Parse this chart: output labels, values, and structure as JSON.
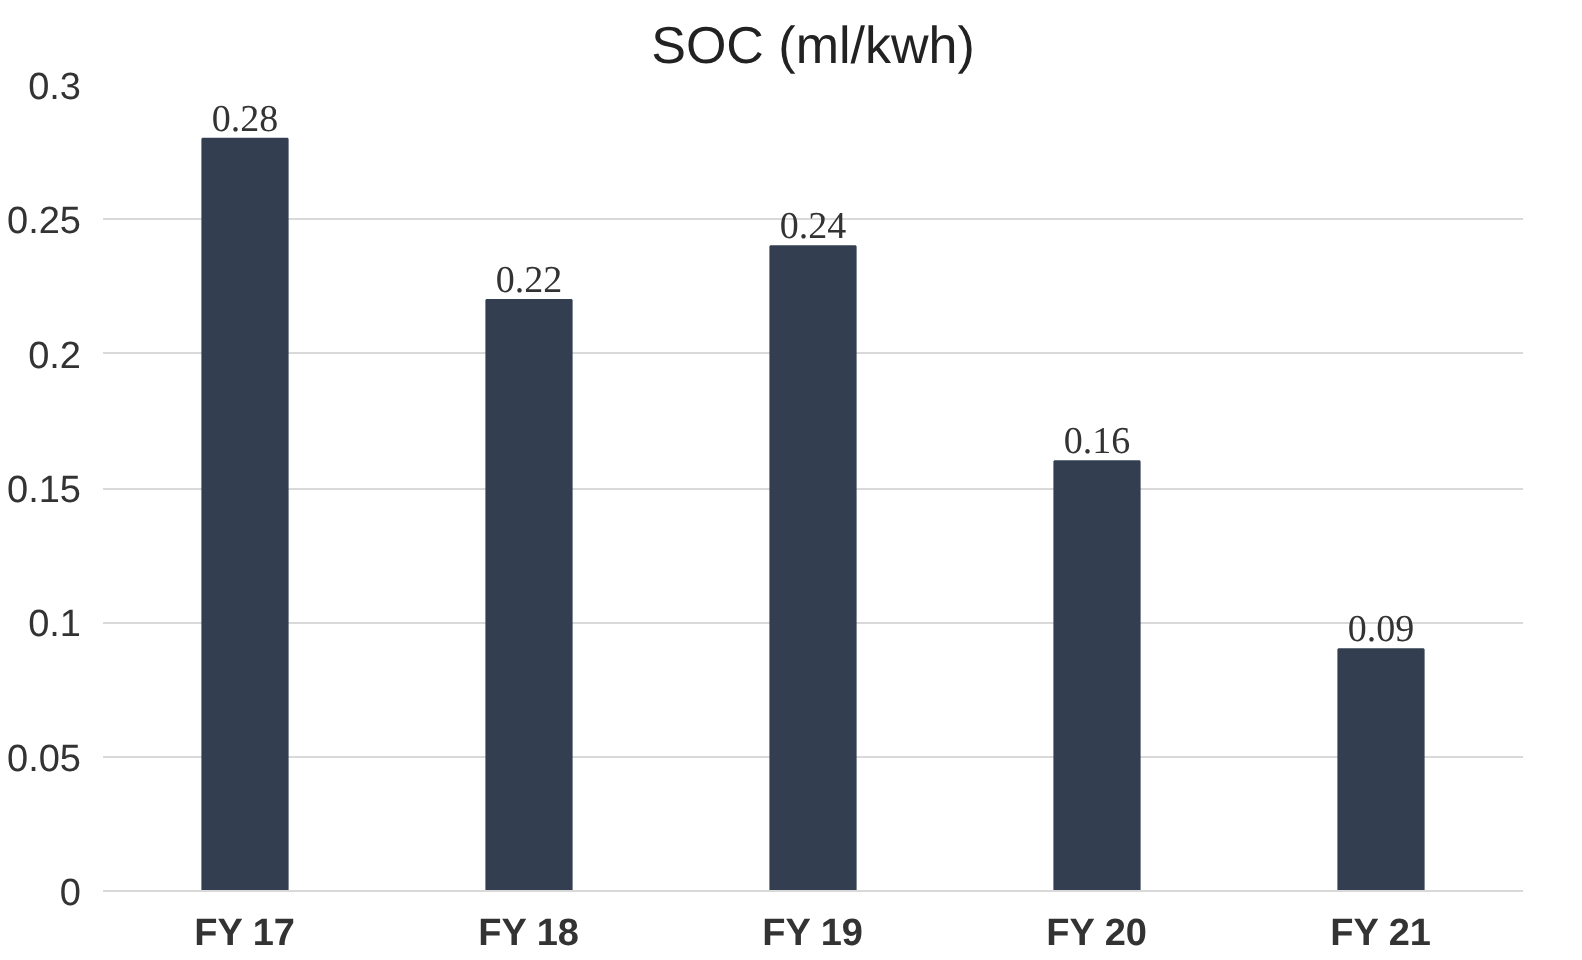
{
  "chart_data": {
    "type": "bar",
    "title": "SOC (ml/kwh)",
    "categories": [
      "FY 17",
      "FY 18",
      "FY 19",
      "FY 20",
      "FY 21"
    ],
    "values": [
      0.28,
      0.22,
      0.24,
      0.16,
      0.09
    ],
    "color": "#333f50",
    "ylim": [
      0,
      0.3
    ],
    "yticks": [
      0,
      0.05,
      0.1,
      0.15,
      0.2,
      0.25,
      0.3
    ],
    "grid": "y",
    "data_labels": true
  }
}
